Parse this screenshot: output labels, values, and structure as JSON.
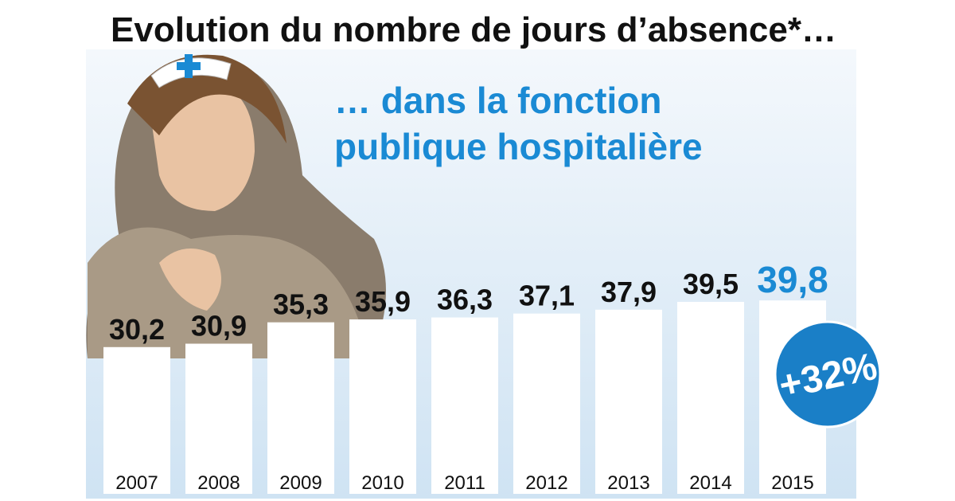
{
  "chart_data": {
    "type": "bar",
    "title": "Evolution du nombre de jours d’absence*…",
    "subtitle": [
      "… dans la fonction",
      "publique hospitalière"
    ],
    "categories": [
      "2007",
      "2008",
      "2009",
      "2010",
      "2011",
      "2012",
      "2013",
      "2014",
      "2015"
    ],
    "values": [
      30.2,
      30.9,
      35.3,
      35.9,
      36.3,
      37.1,
      37.9,
      39.5,
      39.8
    ],
    "value_labels": [
      "30,2",
      "30,9",
      "35,3",
      "35,9",
      "36,3",
      "37,1",
      "37,9",
      "39,5",
      "39,8"
    ],
    "color": "#ffffff",
    "label_color": "#111111",
    "highlight_color": "#1a8ad4",
    "annotation": "+32%"
  }
}
